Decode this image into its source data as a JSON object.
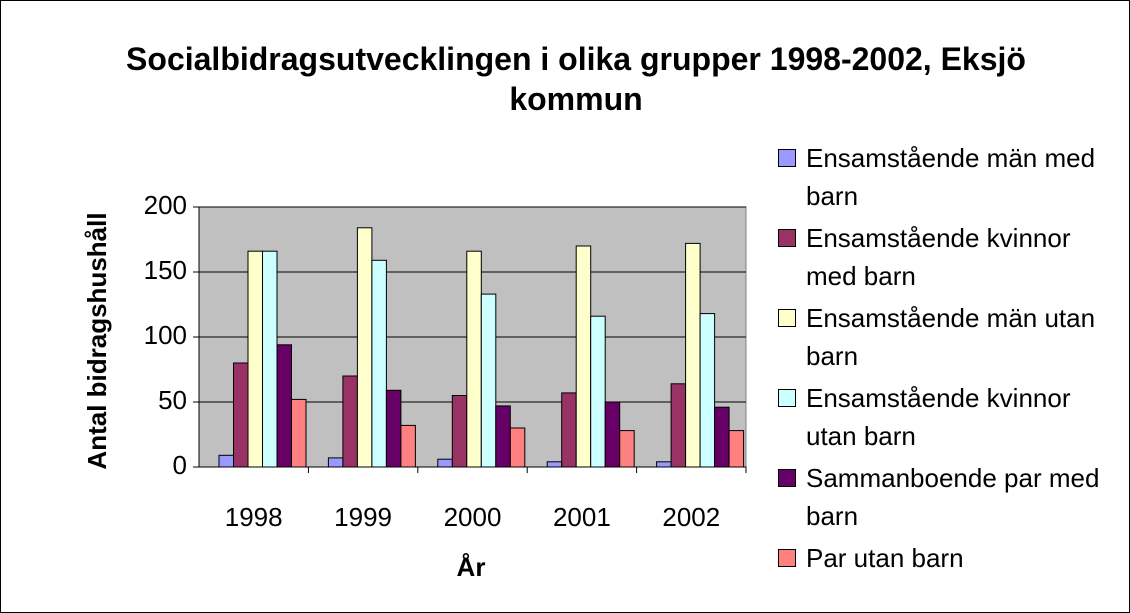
{
  "chart_data": {
    "type": "bar",
    "title": "Socialbidragsutvecklingen i olika grupper 1998-2002, Eksjö kommun",
    "x_label": "År",
    "y_label": "Antal bidragshushåll",
    "categories": [
      "1998",
      "1999",
      "2000",
      "2001",
      "2002"
    ],
    "series": [
      {
        "name": "Ensamstående män med barn",
        "color": "#9999FF",
        "values": [
          9,
          7,
          6,
          4,
          4
        ]
      },
      {
        "name": "Ensamstående kvinnor med barn",
        "color": "#993366",
        "values": [
          80,
          70,
          55,
          57,
          64
        ]
      },
      {
        "name": "Ensamstående män utan barn",
        "color": "#FFFFCC",
        "values": [
          166,
          184,
          166,
          170,
          172
        ]
      },
      {
        "name": "Ensamstående kvinnor utan barn",
        "color": "#CCFFFF",
        "values": [
          166,
          159,
          133,
          116,
          118
        ]
      },
      {
        "name": "Sammanboende par med barn",
        "color": "#660066",
        "values": [
          94,
          59,
          47,
          50,
          46
        ]
      },
      {
        "name": "Par utan barn",
        "color": "#FF8080",
        "values": [
          52,
          32,
          30,
          28,
          28
        ]
      }
    ],
    "ylim": [
      0,
      200
    ],
    "yticks": [
      0,
      50,
      100,
      150,
      200
    ],
    "grid": true,
    "legend": "right"
  }
}
